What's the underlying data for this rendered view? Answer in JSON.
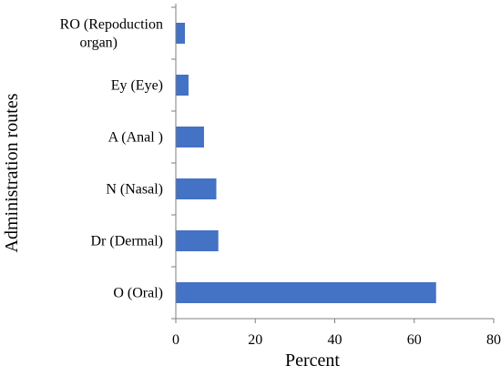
{
  "chart_data": {
    "type": "bar",
    "orientation": "horizontal",
    "categories": [
      "O (Oral)",
      "Dr (Dermal)",
      "N (Nasal)",
      "A (Anal )",
      "Ey (Eye)",
      "RO (Repoduction organ)"
    ],
    "category_label_lines": [
      [
        "O (Oral)"
      ],
      [
        "Dr (Dermal)"
      ],
      [
        "N (Nasal)"
      ],
      [
        "A (Anal )"
      ],
      [
        "Ey (Eye)"
      ],
      [
        "RO (Repoduction",
        "organ)"
      ]
    ],
    "values": [
      65.5,
      10.7,
      10.2,
      7.1,
      3.2,
      2.3
    ],
    "xlabel": "Percent",
    "ylabel": "Administration routes",
    "xlim": [
      0,
      80
    ],
    "xticks": [
      0,
      20,
      40,
      60,
      80
    ],
    "bar_color": "#4472C4",
    "axis_color": "#7f7f7f",
    "grid": false,
    "legend": false
  }
}
